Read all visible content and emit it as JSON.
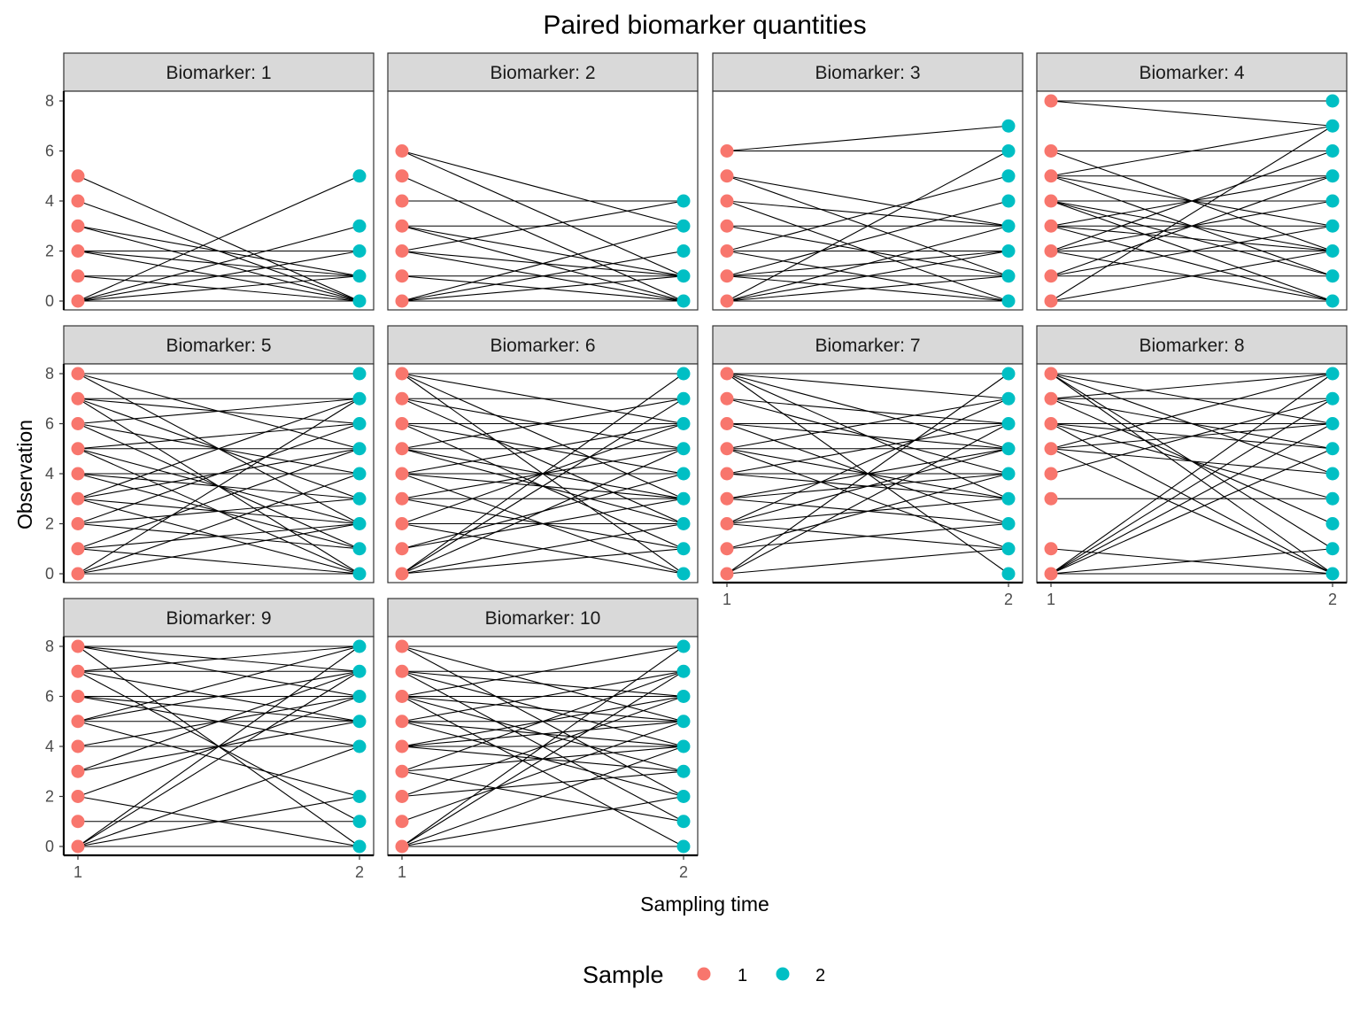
{
  "chart_data": {
    "type": "line",
    "title": "Paired biomarker quantities",
    "xlabel": "Sampling time",
    "ylabel": "Observation",
    "x_ticks": [
      "1",
      "2"
    ],
    "y_ticks": [
      "0",
      "2",
      "4",
      "6",
      "8"
    ],
    "ylim": [
      0,
      8
    ],
    "grid": false,
    "facet_label_prefix": "Biomarker: ",
    "legend": {
      "title": "Sample",
      "position": "bottom",
      "entries": [
        {
          "label": "1",
          "color": "#F8766D"
        },
        {
          "label": "2",
          "color": "#00BFC4"
        }
      ]
    },
    "line_color": "#000000",
    "panels": [
      {
        "label": "1",
        "pairs": [
          [
            5,
            0
          ],
          [
            4,
            0
          ],
          [
            3,
            0
          ],
          [
            3,
            1
          ],
          [
            2,
            2
          ],
          [
            2,
            1
          ],
          [
            2,
            0
          ],
          [
            1,
            1
          ],
          [
            1,
            0
          ],
          [
            0,
            5
          ],
          [
            0,
            3
          ],
          [
            0,
            2
          ],
          [
            0,
            1
          ],
          [
            0,
            0
          ]
        ]
      },
      {
        "label": "2",
        "pairs": [
          [
            6,
            3
          ],
          [
            6,
            1
          ],
          [
            5,
            0
          ],
          [
            4,
            4
          ],
          [
            3,
            3
          ],
          [
            3,
            1
          ],
          [
            3,
            0
          ],
          [
            2,
            4
          ],
          [
            2,
            1
          ],
          [
            2,
            0
          ],
          [
            1,
            1
          ],
          [
            1,
            0
          ],
          [
            0,
            3
          ],
          [
            0,
            2
          ],
          [
            0,
            1
          ],
          [
            0,
            0
          ]
        ]
      },
      {
        "label": "3",
        "pairs": [
          [
            6,
            7
          ],
          [
            6,
            6
          ],
          [
            5,
            3
          ],
          [
            5,
            1
          ],
          [
            4,
            3
          ],
          [
            4,
            0
          ],
          [
            3,
            3
          ],
          [
            3,
            1
          ],
          [
            2,
            5
          ],
          [
            2,
            2
          ],
          [
            2,
            0
          ],
          [
            1,
            4
          ],
          [
            1,
            2
          ],
          [
            1,
            1
          ],
          [
            1,
            0
          ],
          [
            0,
            6
          ],
          [
            0,
            3
          ],
          [
            0,
            2
          ],
          [
            0,
            1
          ],
          [
            0,
            0
          ]
        ]
      },
      {
        "label": "4",
        "pairs": [
          [
            8,
            8
          ],
          [
            8,
            7
          ],
          [
            6,
            6
          ],
          [
            6,
            2
          ],
          [
            5,
            7
          ],
          [
            5,
            5
          ],
          [
            5,
            3
          ],
          [
            5,
            1
          ],
          [
            4,
            4
          ],
          [
            4,
            2
          ],
          [
            4,
            1
          ],
          [
            4,
            0
          ],
          [
            3,
            5
          ],
          [
            3,
            3
          ],
          [
            3,
            2
          ],
          [
            3,
            0
          ],
          [
            2,
            6
          ],
          [
            2,
            4
          ],
          [
            2,
            2
          ],
          [
            2,
            0
          ],
          [
            1,
            5
          ],
          [
            1,
            3
          ],
          [
            1,
            1
          ],
          [
            0,
            7
          ],
          [
            0,
            2
          ],
          [
            0,
            0
          ]
        ]
      },
      {
        "label": "5",
        "pairs": [
          [
            8,
            8
          ],
          [
            8,
            5
          ],
          [
            8,
            2
          ],
          [
            7,
            7
          ],
          [
            7,
            6
          ],
          [
            7,
            3
          ],
          [
            7,
            0
          ],
          [
            6,
            7
          ],
          [
            6,
            4
          ],
          [
            6,
            1
          ],
          [
            5,
            6
          ],
          [
            5,
            5
          ],
          [
            5,
            2
          ],
          [
            5,
            0
          ],
          [
            4,
            4
          ],
          [
            4,
            3
          ],
          [
            4,
            1
          ],
          [
            3,
            7
          ],
          [
            3,
            5
          ],
          [
            3,
            2
          ],
          [
            3,
            0
          ],
          [
            2,
            6
          ],
          [
            2,
            3
          ],
          [
            2,
            1
          ],
          [
            1,
            5
          ],
          [
            1,
            2
          ],
          [
            1,
            0
          ],
          [
            0,
            7
          ],
          [
            0,
            4
          ],
          [
            0,
            2
          ],
          [
            0,
            0
          ]
        ]
      },
      {
        "label": "6",
        "pairs": [
          [
            8,
            8
          ],
          [
            8,
            6
          ],
          [
            8,
            3
          ],
          [
            8,
            0
          ],
          [
            7,
            7
          ],
          [
            7,
            5
          ],
          [
            7,
            2
          ],
          [
            6,
            6
          ],
          [
            6,
            4
          ],
          [
            6,
            1
          ],
          [
            5,
            7
          ],
          [
            5,
            5
          ],
          [
            5,
            3
          ],
          [
            5,
            2
          ],
          [
            4,
            6
          ],
          [
            4,
            4
          ],
          [
            4,
            3
          ],
          [
            4,
            0
          ],
          [
            3,
            5
          ],
          [
            3,
            3
          ],
          [
            3,
            1
          ],
          [
            2,
            6
          ],
          [
            2,
            2
          ],
          [
            2,
            0
          ],
          [
            1,
            4
          ],
          [
            1,
            3
          ],
          [
            0,
            8
          ],
          [
            0,
            7
          ],
          [
            0,
            5
          ],
          [
            0,
            2
          ],
          [
            0,
            1
          ]
        ]
      },
      {
        "label": "7",
        "pairs": [
          [
            8,
            8
          ],
          [
            8,
            7
          ],
          [
            8,
            5
          ],
          [
            8,
            3
          ],
          [
            8,
            0
          ],
          [
            7,
            6
          ],
          [
            7,
            4
          ],
          [
            6,
            6
          ],
          [
            6,
            5
          ],
          [
            6,
            2
          ],
          [
            5,
            7
          ],
          [
            5,
            5
          ],
          [
            5,
            3
          ],
          [
            5,
            1
          ],
          [
            4,
            6
          ],
          [
            4,
            4
          ],
          [
            4,
            3
          ],
          [
            3,
            5
          ],
          [
            3,
            4
          ],
          [
            3,
            2
          ],
          [
            2,
            7
          ],
          [
            2,
            5
          ],
          [
            2,
            3
          ],
          [
            2,
            1
          ],
          [
            1,
            4
          ],
          [
            1,
            2
          ],
          [
            0,
            8
          ],
          [
            0,
            6
          ],
          [
            0,
            1
          ]
        ]
      },
      {
        "label": "8",
        "pairs": [
          [
            8,
            8
          ],
          [
            8,
            6
          ],
          [
            8,
            4
          ],
          [
            8,
            1
          ],
          [
            8,
            0
          ],
          [
            7,
            8
          ],
          [
            7,
            7
          ],
          [
            7,
            5
          ],
          [
            7,
            2
          ],
          [
            6,
            6
          ],
          [
            6,
            5
          ],
          [
            6,
            3
          ],
          [
            6,
            0
          ],
          [
            5,
            8
          ],
          [
            5,
            6
          ],
          [
            5,
            4
          ],
          [
            5,
            0
          ],
          [
            4,
            7
          ],
          [
            3,
            3
          ],
          [
            1,
            0
          ],
          [
            0,
            8
          ],
          [
            0,
            7
          ],
          [
            0,
            6
          ],
          [
            0,
            5
          ],
          [
            0,
            1
          ],
          [
            0,
            0
          ]
        ]
      },
      {
        "label": "9",
        "pairs": [
          [
            8,
            8
          ],
          [
            8,
            7
          ],
          [
            8,
            6
          ],
          [
            8,
            0
          ],
          [
            7,
            8
          ],
          [
            7,
            7
          ],
          [
            7,
            5
          ],
          [
            7,
            1
          ],
          [
            6,
            6
          ],
          [
            6,
            5
          ],
          [
            6,
            4
          ],
          [
            5,
            8
          ],
          [
            5,
            7
          ],
          [
            5,
            5
          ],
          [
            5,
            2
          ],
          [
            4,
            6
          ],
          [
            4,
            4
          ],
          [
            3,
            7
          ],
          [
            3,
            5
          ],
          [
            2,
            6
          ],
          [
            2,
            0
          ],
          [
            1,
            1
          ],
          [
            0,
            8
          ],
          [
            0,
            7
          ],
          [
            0,
            4
          ],
          [
            0,
            2
          ],
          [
            0,
            0
          ]
        ]
      },
      {
        "label": "10",
        "pairs": [
          [
            8,
            8
          ],
          [
            8,
            5
          ],
          [
            8,
            2
          ],
          [
            7,
            7
          ],
          [
            7,
            6
          ],
          [
            7,
            4
          ],
          [
            7,
            1
          ],
          [
            6,
            8
          ],
          [
            6,
            6
          ],
          [
            6,
            5
          ],
          [
            6,
            3
          ],
          [
            6,
            0
          ],
          [
            5,
            7
          ],
          [
            5,
            5
          ],
          [
            5,
            4
          ],
          [
            5,
            2
          ],
          [
            4,
            6
          ],
          [
            4,
            5
          ],
          [
            4,
            4
          ],
          [
            4,
            3
          ],
          [
            3,
            7
          ],
          [
            3,
            4
          ],
          [
            3,
            1
          ],
          [
            2,
            6
          ],
          [
            2,
            3
          ],
          [
            1,
            5
          ],
          [
            0,
            8
          ],
          [
            0,
            7
          ],
          [
            0,
            4
          ],
          [
            0,
            2
          ],
          [
            0,
            0
          ]
        ]
      }
    ]
  }
}
